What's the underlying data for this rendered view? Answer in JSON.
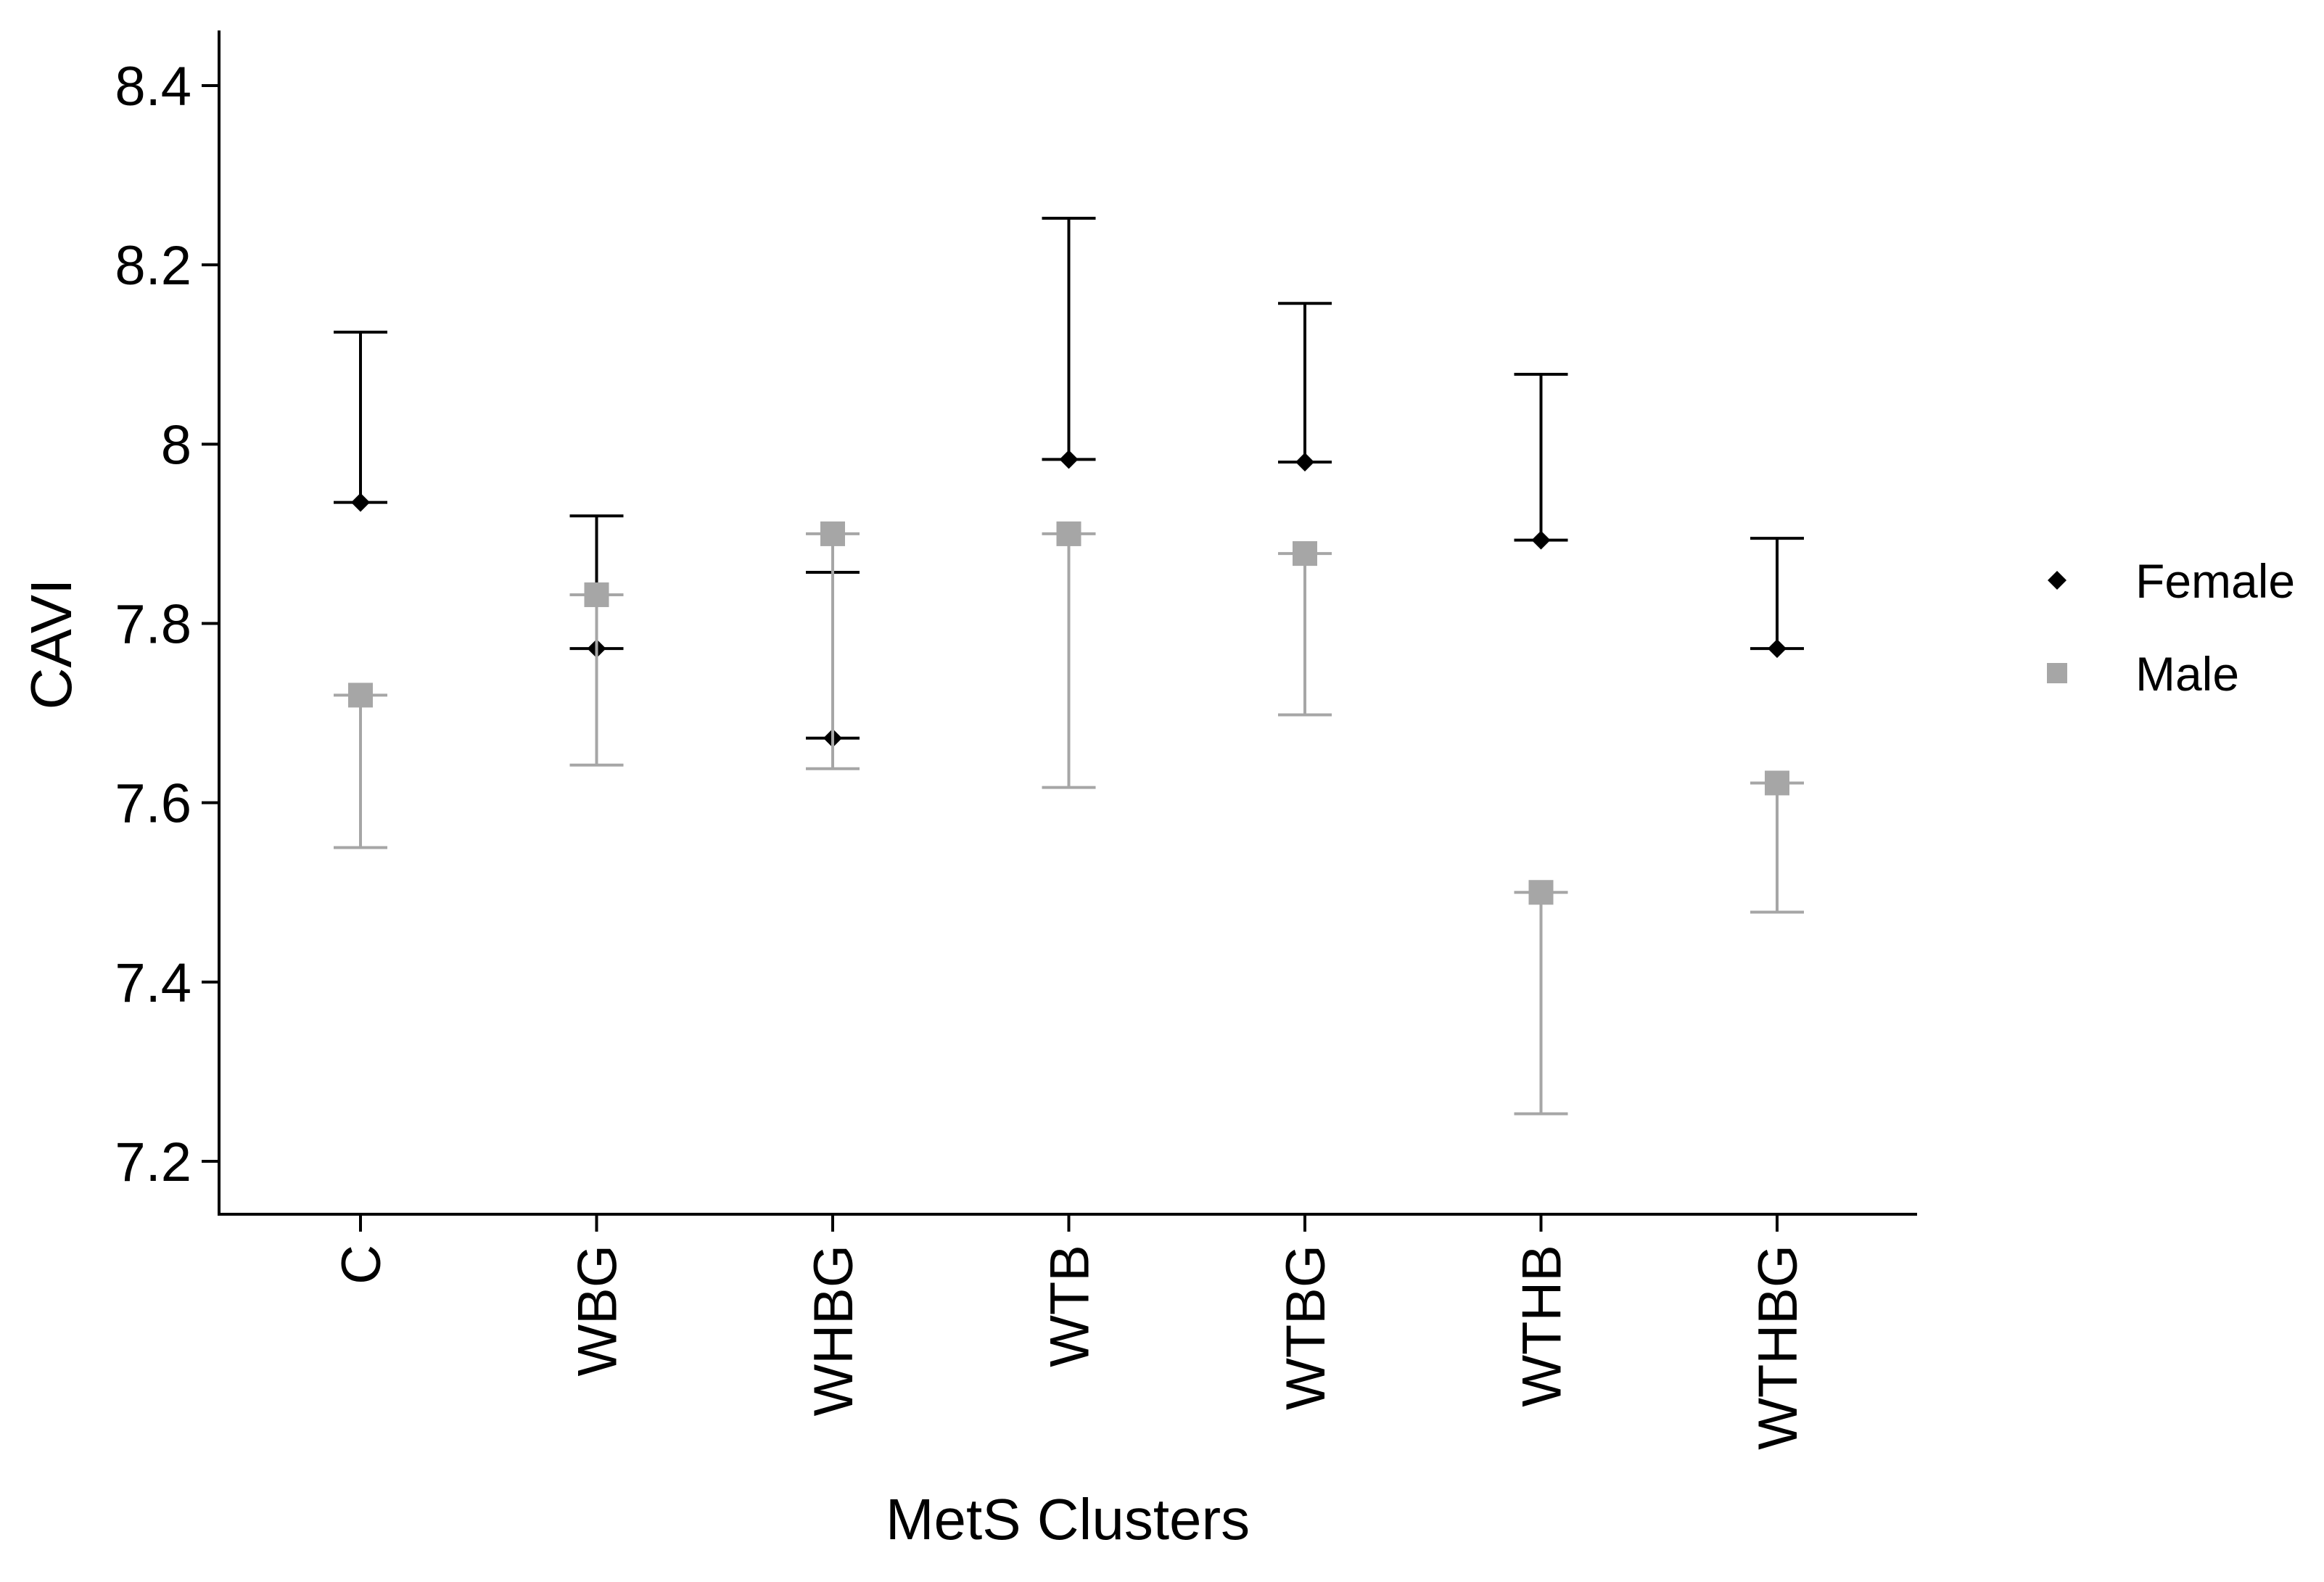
{
  "chart_data": {
    "type": "scatter",
    "title": "",
    "xlabel": "MetS Clusters",
    "ylabel": "CAVI",
    "categories": [
      "C",
      "WBG",
      "WHBG",
      "WTB",
      "WTBG",
      "WTHB",
      "WTHBG"
    ],
    "ylim": [
      7.14,
      8.46
    ],
    "yticks": [
      7.2,
      7.4,
      7.6,
      7.8,
      8,
      8.2,
      8.4
    ],
    "ytick_labels": [
      "7.2",
      "7.4",
      "7.6",
      "7.8",
      "8",
      "8.2",
      "8.4"
    ],
    "grid": false,
    "legend_position": "right",
    "series": [
      {
        "name": "Female",
        "marker": "diamond",
        "color": "#000000",
        "values": [
          7.935,
          7.772,
          7.672,
          7.983,
          7.98,
          7.893,
          7.772
        ],
        "error_upper": [
          8.125,
          7.92,
          7.857,
          8.252,
          8.157,
          8.078,
          7.895
        ],
        "error_lower": [
          null,
          null,
          null,
          null,
          null,
          null,
          null
        ]
      },
      {
        "name": "Male",
        "marker": "square",
        "color": "#a6a6a6",
        "values": [
          7.72,
          7.832,
          7.9,
          7.9,
          7.878,
          7.5,
          7.622
        ],
        "error_upper": [
          null,
          null,
          null,
          null,
          null,
          null,
          null
        ],
        "error_lower": [
          7.55,
          7.642,
          7.638,
          7.617,
          7.698,
          7.253,
          7.478
        ]
      }
    ]
  }
}
